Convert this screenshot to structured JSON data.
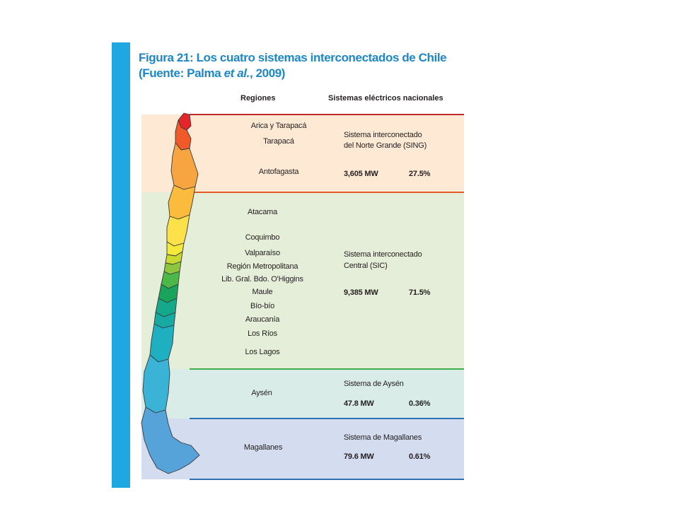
{
  "figure": {
    "title_line1": "Figura 21: Los cuatro sistemas interconectados de Chile",
    "title_line2": "(Fuente: Palma et al., 2009)",
    "header_regions": "Regiones",
    "header_systems": "Sistemas eléctricos nacionales"
  },
  "colors": {
    "accent_blue": "#1ea7e1",
    "title_blue": "#1c87c9",
    "sing_band": "#fde9d4",
    "sic_band": "#e4eed8",
    "aysen_band": "#d9ece8",
    "magallanes_band": "#d4dcf0",
    "sing_line": "#c0282d",
    "sic_line": "#e35a2b",
    "aysen_line": "#3dad4a",
    "magallanes_line": "#2f6fb6"
  },
  "systems": [
    {
      "regions": [
        "Arica y Tarapacá",
        "Tarapacá",
        "Antofagasta"
      ],
      "name_lines": [
        "Sistema interconectado",
        "del Norte Grande (SING)"
      ],
      "capacity": "3,605 MW",
      "share": "27.5%"
    },
    {
      "regions": [
        "Atacama",
        "Coquimbo",
        "Valparaíso",
        "Región Metropolitana",
        "Lib. Gral. Bdo. O'Higgins",
        "Maule",
        "Bío-bío",
        "Araucanía",
        "Los Ríos",
        "Los Lagos"
      ],
      "name_lines": [
        "Sistema interconectado",
        "Central (SIC)"
      ],
      "capacity": "9,385 MW",
      "share": "71.5%"
    },
    {
      "regions": [
        "Aysén"
      ],
      "name_lines": [
        "Sistema de Aysén"
      ],
      "capacity": "47.8 MW",
      "share": "0.36%"
    },
    {
      "regions": [
        "Magallanes"
      ],
      "name_lines": [
        "Sistema de Magallanes"
      ],
      "capacity": "79.6 MW",
      "share": "0.61%"
    }
  ],
  "map": {
    "icon": "chile-regions-map"
  }
}
